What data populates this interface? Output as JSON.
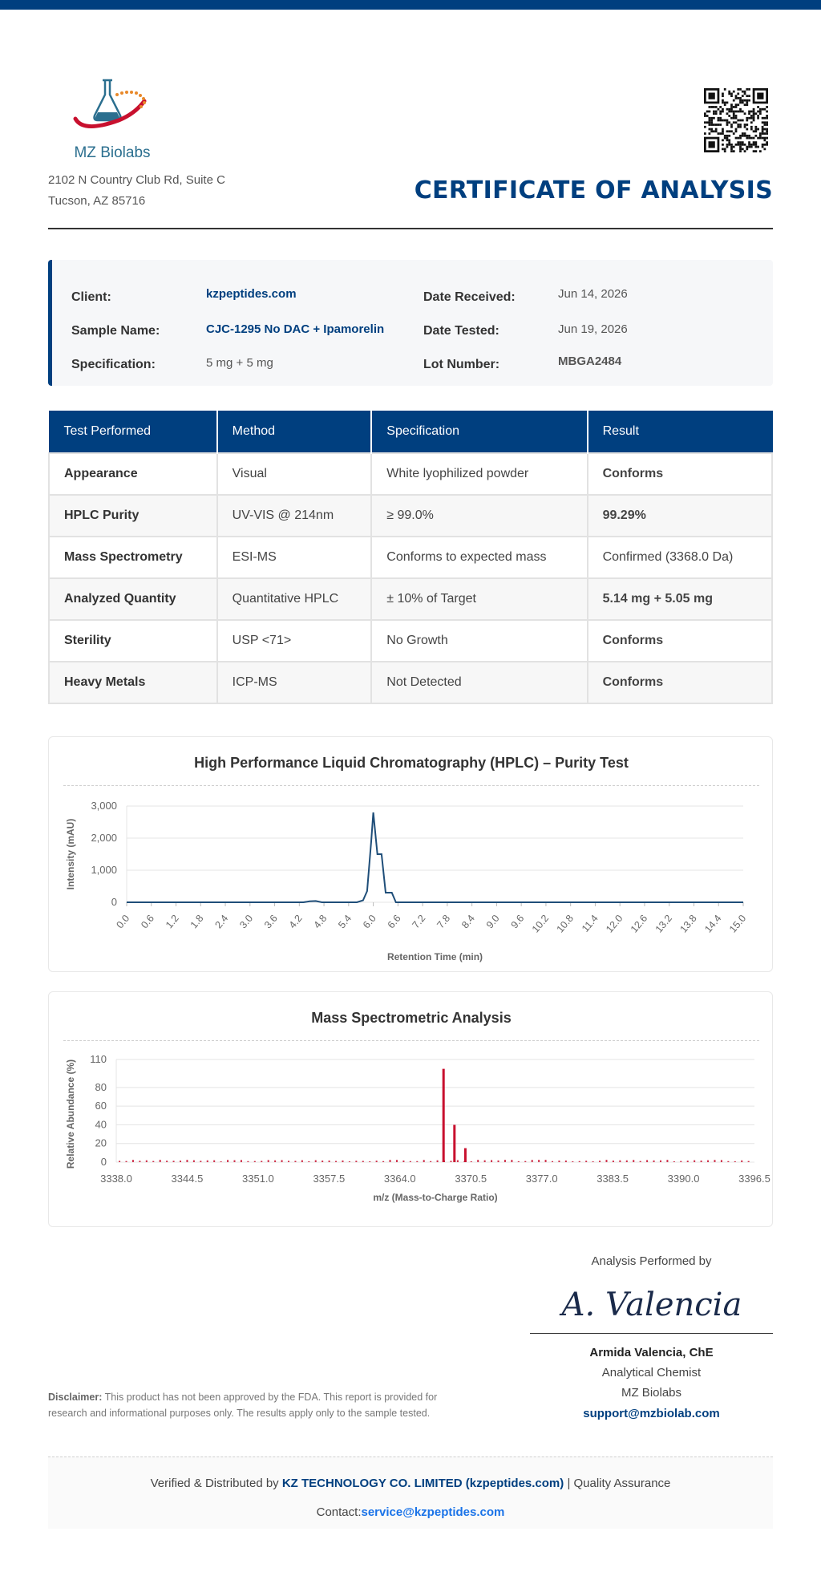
{
  "header": {
    "logo_text": "MZ Biolabs",
    "address_line1": "2102 N Country Club Rd, Suite C",
    "address_line2": "Tucson, AZ 85716",
    "title": "CERTIFICATE OF ANALYSIS"
  },
  "info": {
    "client_label": "Client:",
    "client_value": "kzpeptides.com",
    "sample_label": "Sample Name:",
    "sample_value": "CJC-1295 No DAC + Ipamorelin",
    "spec_label": "Specification:",
    "spec_value": "5 mg + 5 mg",
    "received_label": "Date Received:",
    "received_value": "Jun 14, 2026",
    "tested_label": "Date Tested:",
    "tested_value": "Jun 19, 2026",
    "lot_label": "Lot Number:",
    "lot_value": "MBGA2484"
  },
  "table": {
    "headers": [
      "Test Performed",
      "Method",
      "Specification",
      "Result"
    ],
    "rows": [
      {
        "test": "Appearance",
        "method": "Visual",
        "spec": "White lyophilized powder",
        "result": "Conforms"
      },
      {
        "test": "HPLC Purity",
        "method": "UV-VIS @ 214nm",
        "spec": "≥ 99.0%",
        "result": "99.29%"
      },
      {
        "test": "Mass Spectrometry",
        "method": "ESI-MS",
        "spec": "Conforms to expected mass",
        "result": "Confirmed (3368.0 Da)"
      },
      {
        "test": "Analyzed Quantity",
        "method": "Quantitative HPLC",
        "spec": "± 10% of Target",
        "result": "5.14 mg + 5.05 mg"
      },
      {
        "test": "Sterility",
        "method": "USP <71>",
        "spec": "No Growth",
        "result": "Conforms"
      },
      {
        "test": "Heavy Metals",
        "method": "ICP-MS",
        "spec": "Not Detected",
        "result": "Conforms"
      }
    ],
    "colors": {
      "green": "#1f9a3a",
      "header_bg": "#003f7f"
    }
  },
  "chart_data": [
    {
      "type": "line",
      "title": "High Performance Liquid Chromatography (HPLC) – Purity Test",
      "xlabel": "Retention Time (min)",
      "ylabel": "Intensity (mAU)",
      "xlim": [
        0,
        15
      ],
      "ylim": [
        0,
        3000
      ],
      "x_ticks": [
        "0.0",
        "0.6",
        "1.2",
        "1.8",
        "2.4",
        "3.0",
        "3.6",
        "4.2",
        "4.8",
        "5.4",
        "6.0",
        "6.6",
        "7.2",
        "7.8",
        "8.4",
        "9.0",
        "9.6",
        "10.2",
        "10.8",
        "11.4",
        "12.0",
        "12.6",
        "13.2",
        "13.8",
        "14.4",
        "15.0"
      ],
      "y_ticks": [
        "0",
        "1,000",
        "2,000",
        "3,000"
      ],
      "y_tick_values": [
        0,
        1000,
        2000,
        3000
      ],
      "grid": true,
      "color": "#1f4e79",
      "x": [
        0,
        4.3,
        4.45,
        4.6,
        4.75,
        5.6,
        5.75,
        5.85,
        5.95,
        6.0,
        6.1,
        6.2,
        6.3,
        6.45,
        6.55,
        6.7,
        15
      ],
      "y": [
        0,
        0,
        30,
        40,
        0,
        0,
        60,
        350,
        1900,
        2800,
        1500,
        1500,
        300,
        300,
        0,
        0,
        0
      ]
    },
    {
      "type": "bar",
      "title": "Mass Spectrometric Analysis",
      "xlabel": "m/z (Mass-to-Charge Ratio)",
      "ylabel": "Relative Abundance (%)",
      "xlim": [
        3338.0,
        3396.5
      ],
      "ylim": [
        0,
        110
      ],
      "x_ticks": [
        "3338.0",
        "3344.5",
        "3351.0",
        "3357.5",
        "3364.0",
        "3370.5",
        "3377.0",
        "3383.5",
        "3390.0",
        "3396.5"
      ],
      "x_tick_values": [
        3338.0,
        3344.5,
        3351.0,
        3357.5,
        3364.0,
        3370.5,
        3377.0,
        3383.5,
        3390.0,
        3396.5
      ],
      "y_ticks": [
        "0",
        "20",
        "40",
        "60",
        "80",
        "110"
      ],
      "y_tick_values": [
        0,
        20,
        40,
        60,
        80,
        110
      ],
      "grid": true,
      "color": "#c8102e",
      "peaks": [
        {
          "x": 3368.0,
          "y": 100
        },
        {
          "x": 3369.0,
          "y": 40
        },
        {
          "x": 3370.0,
          "y": 15
        }
      ],
      "noise_level": 2
    }
  ],
  "signature": {
    "performed_by": "Analysis Performed by",
    "script": "A. Valencia",
    "name": "Armida Valencia, ChE",
    "role": "Analytical Chemist",
    "org": "MZ Biolabs",
    "email": "support@mzbiolab.com"
  },
  "disclaimer": {
    "label": "Disclaimer:",
    "text": "This product has not been approved by the FDA. This report is provided for research and informational purposes only. The results apply only to the sample tested."
  },
  "footer": {
    "verified_prefix": "Verified & Distributed by",
    "company": "KZ TECHNOLOGY CO. LIMITED (kzpeptides.com)",
    "suffix": "| Quality Assurance",
    "contact_label": "Contact:",
    "contact_email": "service@kzpeptides.com"
  }
}
